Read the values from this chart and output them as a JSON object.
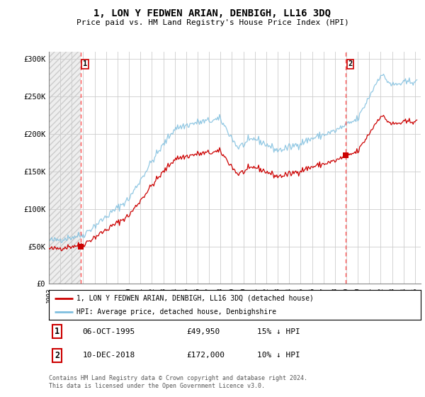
{
  "title": "1, LON Y FEDWEN ARIAN, DENBIGH, LL16 3DQ",
  "subtitle": "Price paid vs. HM Land Registry's House Price Index (HPI)",
  "ylim": [
    0,
    310000
  ],
  "yticks": [
    0,
    50000,
    100000,
    150000,
    200000,
    250000,
    300000
  ],
  "ytick_labels": [
    "£0",
    "£50K",
    "£100K",
    "£150K",
    "£200K",
    "£250K",
    "£300K"
  ],
  "sale1_date": 1995.77,
  "sale1_price": 49950,
  "sale1_label": "1",
  "sale2_date": 2018.94,
  "sale2_price": 172000,
  "sale2_label": "2",
  "hpi_color": "#7fbfdf",
  "price_color": "#cc0000",
  "dashed_line_color": "#ff5555",
  "grid_color": "#cccccc",
  "legend_label_price": "1, LON Y FEDWEN ARIAN, DENBIGH, LL16 3DQ (detached house)",
  "legend_label_hpi": "HPI: Average price, detached house, Denbighshire",
  "footer": "Contains HM Land Registry data © Crown copyright and database right 2024.\nThis data is licensed under the Open Government Licence v3.0.",
  "xmin": 1993,
  "xmax": 2025.5
}
